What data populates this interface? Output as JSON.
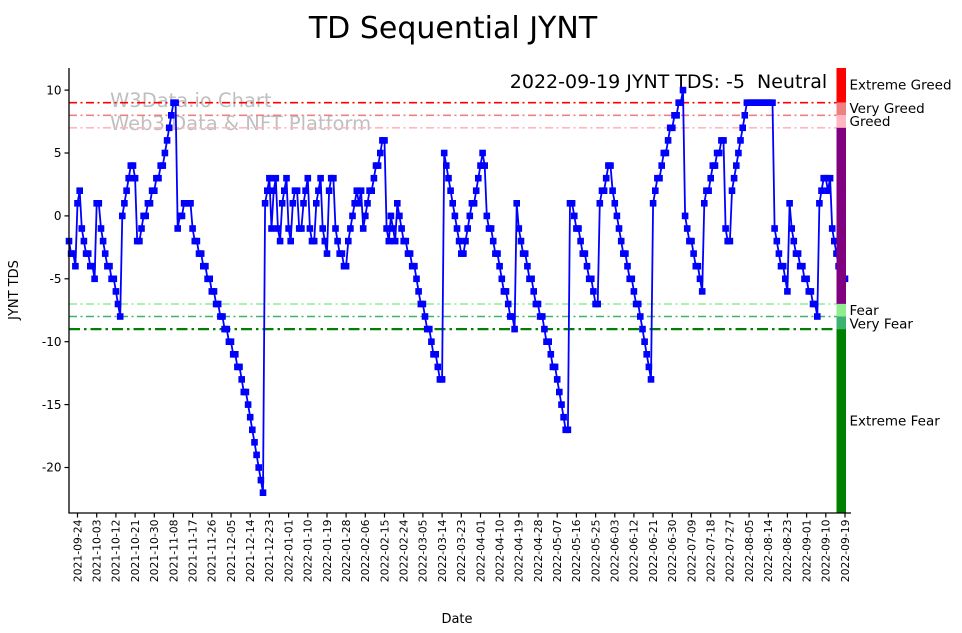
{
  "title": "TD Sequential JYNT",
  "watermark": {
    "line1": "W3Data.io Chart",
    "line2": "Web3 Data & NFT Platform"
  },
  "annotation": {
    "label": "2022-09-19 JYNT TDS: -5",
    "sentiment": "Neutral",
    "sentiment_color": "#800080"
  },
  "chart_data": {
    "type": "line",
    "title": "TD Sequential JYNT",
    "xlabel": "Date",
    "ylabel": "JYNT TDS",
    "ylim": [
      -23.6,
      11.8
    ],
    "grid": false,
    "y_ticks": [
      10,
      5,
      0,
      -5,
      -10,
      -15,
      -20
    ],
    "x_tick_first_index": 4,
    "x_tick_step": 9,
    "x_tick_labels": [
      "2021-09-24",
      "2021-10-03",
      "2021-10-12",
      "2021-10-21",
      "2021-10-30",
      "2021-11-08",
      "2021-11-17",
      "2021-11-26",
      "2021-12-05",
      "2021-12-14",
      "2021-12-23",
      "2022-01-01",
      "2022-01-10",
      "2022-01-19",
      "2022-01-28",
      "2022-02-06",
      "2022-02-15",
      "2022-02-24",
      "2022-03-05",
      "2022-03-14",
      "2022-03-23",
      "2022-04-01",
      "2022-04-10",
      "2022-04-19",
      "2022-04-28",
      "2022-05-07",
      "2022-05-16",
      "2022-05-25",
      "2022-06-03",
      "2022-06-12",
      "2022-06-21",
      "2022-06-30",
      "2022-07-09",
      "2022-07-18",
      "2022-07-27",
      "2022-08-05",
      "2022-08-14",
      "2022-08-23",
      "2022-09-01",
      "2022-09-10",
      "2022-09-19"
    ],
    "series": [
      {
        "name": "JYNT TDS",
        "color": "#0000ff",
        "marker": "square",
        "values": [
          -2,
          -3,
          -3,
          -4,
          1,
          2,
          -1,
          -2,
          -3,
          -3,
          -4,
          -4,
          -5,
          1,
          1,
          -1,
          -2,
          -3,
          -4,
          -4,
          -5,
          -5,
          -6,
          -7,
          -8,
          0,
          1,
          2,
          3,
          4,
          4,
          3,
          -2,
          -2,
          -1,
          0,
          0,
          1,
          1,
          2,
          2,
          3,
          3,
          4,
          4,
          5,
          6,
          7,
          8,
          9,
          9,
          -1,
          0,
          0,
          1,
          1,
          1,
          1,
          -1,
          -2,
          -2,
          -3,
          -3,
          -4,
          -4,
          -5,
          -5,
          -6,
          -6,
          -7,
          -7,
          -8,
          -8,
          -9,
          -9,
          -10,
          -10,
          -11,
          -11,
          -12,
          -12,
          -13,
          -14,
          -14,
          -15,
          -16,
          -17,
          -18,
          -19,
          -20,
          -21,
          -22,
          1,
          2,
          3,
          -1,
          2,
          3,
          -1,
          -2,
          1,
          2,
          3,
          -1,
          -2,
          1,
          2,
          2,
          -1,
          -1,
          1,
          2,
          3,
          -1,
          -2,
          -2,
          1,
          2,
          3,
          -1,
          -2,
          -3,
          2,
          3,
          3,
          -1,
          -2,
          -3,
          -3,
          -4,
          -4,
          -2,
          -1,
          0,
          1,
          2,
          1,
          2,
          -1,
          0,
          1,
          2,
          2,
          3,
          4,
          4,
          5,
          6,
          6,
          -1,
          -2,
          0,
          -1,
          -2,
          1,
          0,
          -1,
          -2,
          -2,
          -3,
          -3,
          -4,
          -4,
          -5,
          -6,
          -7,
          -7,
          -8,
          -9,
          -9,
          -10,
          -11,
          -11,
          -12,
          -13,
          -13,
          5,
          4,
          3,
          2,
          1,
          0,
          -1,
          -2,
          -3,
          -3,
          -2,
          -1,
          0,
          1,
          1,
          2,
          3,
          4,
          5,
          4,
          0,
          -1,
          -1,
          -2,
          -3,
          -3,
          -4,
          -5,
          -6,
          -6,
          -7,
          -8,
          -8,
          -9,
          1,
          -1,
          -2,
          -3,
          -3,
          -4,
          -5,
          -5,
          -6,
          -7,
          -7,
          -8,
          -8,
          -9,
          -10,
          -10,
          -11,
          -12,
          -12,
          -13,
          -14,
          -15,
          -16,
          -17,
          -17,
          1,
          1,
          0,
          -1,
          -1,
          -2,
          -3,
          -3,
          -4,
          -5,
          -5,
          -6,
          -7,
          -7,
          1,
          2,
          2,
          3,
          4,
          4,
          2,
          1,
          0,
          -1,
          -2,
          -3,
          -3,
          -4,
          -5,
          -5,
          -6,
          -7,
          -7,
          -8,
          -9,
          -10,
          -11,
          -12,
          -13,
          1,
          2,
          3,
          3,
          4,
          5,
          5,
          6,
          7,
          7,
          8,
          8,
          9,
          9,
          10,
          0,
          -1,
          -2,
          -2,
          -3,
          -4,
          -4,
          -5,
          -6,
          1,
          2,
          2,
          3,
          4,
          4,
          5,
          5,
          6,
          6,
          -1,
          -2,
          -2,
          2,
          3,
          4,
          5,
          6,
          7,
          8,
          9,
          9,
          9,
          9,
          9,
          9,
          9,
          9,
          9,
          9,
          9,
          9,
          9,
          -1,
          -2,
          -3,
          -4,
          -4,
          -5,
          -6,
          1,
          -1,
          -2,
          -3,
          -3,
          -4,
          -4,
          -5,
          -5,
          -6,
          -6,
          -7,
          -7,
          -8,
          1,
          2,
          3,
          3,
          2,
          3,
          -1,
          -2,
          -3,
          -4,
          -4,
          -5,
          -5
        ]
      }
    ],
    "thresholds": [
      {
        "value": 9,
        "color": "#ff0000",
        "width": 1.6
      },
      {
        "value": 8,
        "color": "#f08080",
        "width": 1.6
      },
      {
        "value": 7,
        "color": "#ffb6c1",
        "width": 1.6
      },
      {
        "value": -7,
        "color": "#90ee90",
        "width": 1.6
      },
      {
        "value": -8,
        "color": "#3cb371",
        "width": 1.6
      },
      {
        "value": -9,
        "color": "#008000",
        "width": 2.2
      }
    ],
    "zones": [
      {
        "label": "Extreme Greed",
        "color": "#ff0000",
        "from": 11.8,
        "to": 9,
        "label_at": 10.4
      },
      {
        "label": "Very Greed",
        "color": "#f08080",
        "from": 9,
        "to": 8,
        "label_at": 8.55
      },
      {
        "label": "Greed",
        "color": "#ffb6c1",
        "from": 8,
        "to": 7,
        "label_at": 7.5
      },
      {
        "label": "",
        "color": "#800080",
        "from": 7,
        "to": -7,
        "label_at": 0
      },
      {
        "label": "Fear",
        "color": "#90ee90",
        "from": -7,
        "to": -8,
        "label_at": -7.5
      },
      {
        "label": "Very Fear",
        "color": "#3cb371",
        "from": -8,
        "to": -9,
        "label_at": -8.6
      },
      {
        "label": "Extreme Fear",
        "color": "#008000",
        "from": -9,
        "to": -23.6,
        "label_at": -16.3
      }
    ]
  }
}
